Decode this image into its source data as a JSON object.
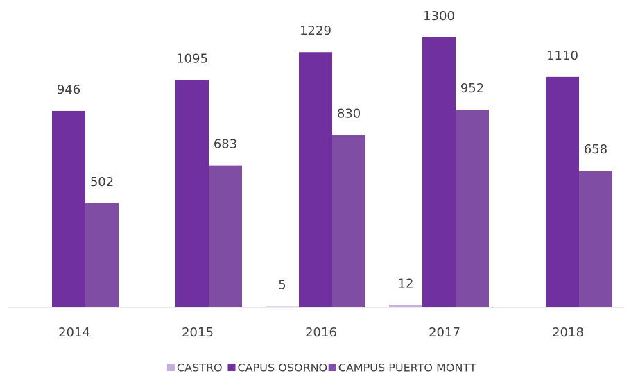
{
  "chart_data": {
    "type": "bar",
    "categories": [
      "2014",
      "2015",
      "2016",
      "2017",
      "2018"
    ],
    "series": [
      {
        "name": "CASTRO",
        "color": "#c5b0dd",
        "values": [
          null,
          null,
          5,
          12,
          null
        ]
      },
      {
        "name": "CAPUS OSORNO",
        "color": "#7030a0",
        "values": [
          946,
          1095,
          1229,
          1300,
          1110
        ]
      },
      {
        "name": "CAMPUS PUERTO MONTT",
        "color": "#7f4ea4",
        "values": [
          502,
          683,
          830,
          952,
          658
        ]
      }
    ],
    "legend": "bottom"
  }
}
